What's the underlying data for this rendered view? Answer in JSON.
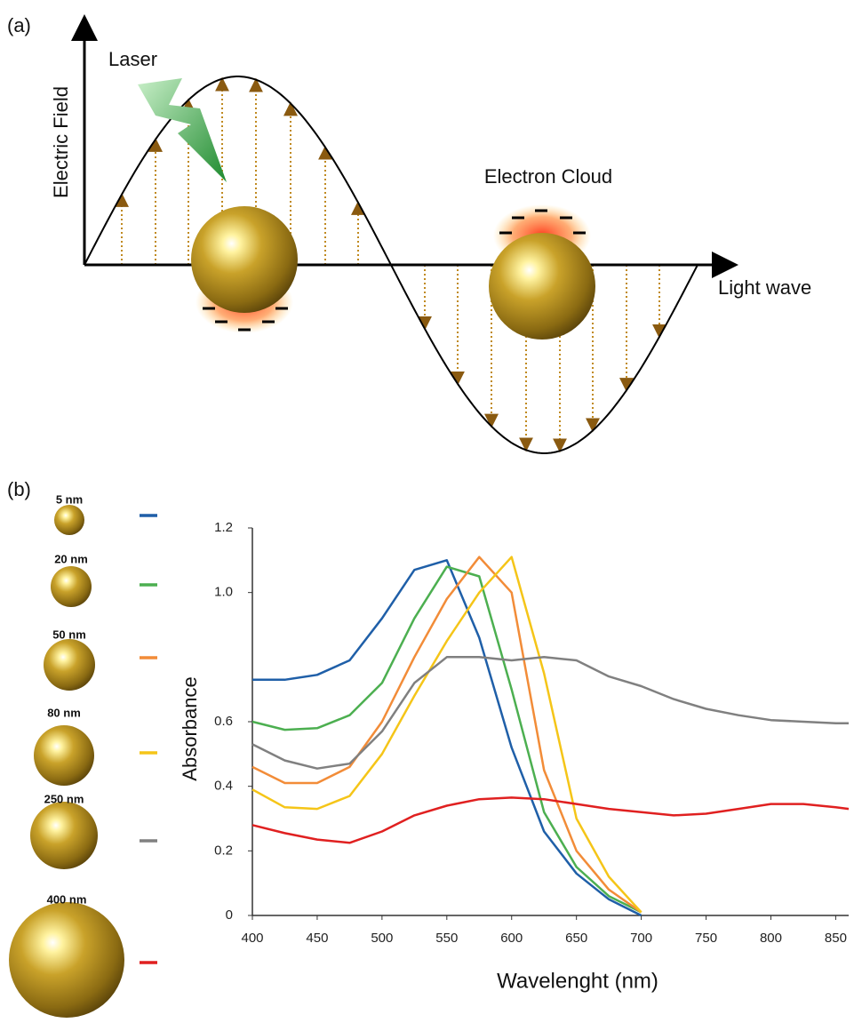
{
  "panel_a": {
    "label": "(a)",
    "laser": "Laser",
    "y_axis": "Electric Field",
    "cloud": "Electron Cloud",
    "x_axis": "Light wave"
  },
  "panel_b_label": "(b)",
  "chart_data": {
    "type": "line",
    "x_label": "Wavelenght (nm)",
    "y_label": "Absorbance",
    "x": [
      400,
      425,
      450,
      475,
      500,
      525,
      550,
      575,
      600,
      625,
      650,
      675,
      700,
      725,
      750,
      775,
      800,
      825,
      850,
      860
    ],
    "series": [
      {
        "name": "5 nm",
        "color": "#1f5fa8",
        "values": [
          0.73,
          0.73,
          0.745,
          0.79,
          0.92,
          1.07,
          1.1,
          0.86,
          0.52,
          0.26,
          0.13,
          0.05,
          0,
          null,
          null,
          null,
          null,
          null,
          null,
          null
        ]
      },
      {
        "name": "20 nm",
        "color": "#4caf50",
        "values": [
          0.6,
          0.575,
          0.58,
          0.62,
          0.72,
          0.92,
          1.08,
          1.05,
          0.7,
          0.32,
          0.15,
          0.06,
          0.01,
          null,
          null,
          null,
          null,
          null,
          null,
          null
        ]
      },
      {
        "name": "50 nm",
        "color": "#f28c38",
        "values": [
          0.46,
          0.41,
          0.41,
          0.46,
          0.6,
          0.8,
          0.98,
          1.11,
          1.0,
          0.45,
          0.2,
          0.08,
          0.01,
          null,
          null,
          null,
          null,
          null,
          null,
          null
        ]
      },
      {
        "name": "80 nm",
        "color": "#f5c518",
        "values": [
          0.39,
          0.335,
          0.33,
          0.37,
          0.5,
          0.68,
          0.85,
          1.0,
          1.11,
          0.75,
          0.3,
          0.12,
          0.01,
          null,
          null,
          null,
          null,
          null,
          null,
          null
        ]
      },
      {
        "name": "250 nm",
        "color": "#808080",
        "values": [
          0.53,
          0.48,
          0.455,
          0.47,
          0.57,
          0.72,
          0.8,
          0.8,
          0.79,
          0.8,
          0.79,
          0.74,
          0.71,
          0.67,
          0.64,
          0.62,
          0.605,
          0.6,
          0.595,
          0.595
        ]
      },
      {
        "name": "400 nm",
        "color": "#e02020",
        "values": [
          0.28,
          0.255,
          0.235,
          0.225,
          0.26,
          0.31,
          0.34,
          0.36,
          0.365,
          0.36,
          0.345,
          0.33,
          0.32,
          0.31,
          0.315,
          0.33,
          0.345,
          0.345,
          0.335,
          0.33
        ]
      }
    ],
    "xlim": [
      400,
      860
    ],
    "xticks": [
      400,
      450,
      500,
      550,
      600,
      650,
      700,
      750,
      800,
      850
    ],
    "ylim": [
      0,
      1.2
    ],
    "yticks": [
      0,
      0.2,
      0.4,
      0.6,
      {
        "value": 1,
        "label": "1.0"
      },
      1.2
    ],
    "grid": false
  }
}
